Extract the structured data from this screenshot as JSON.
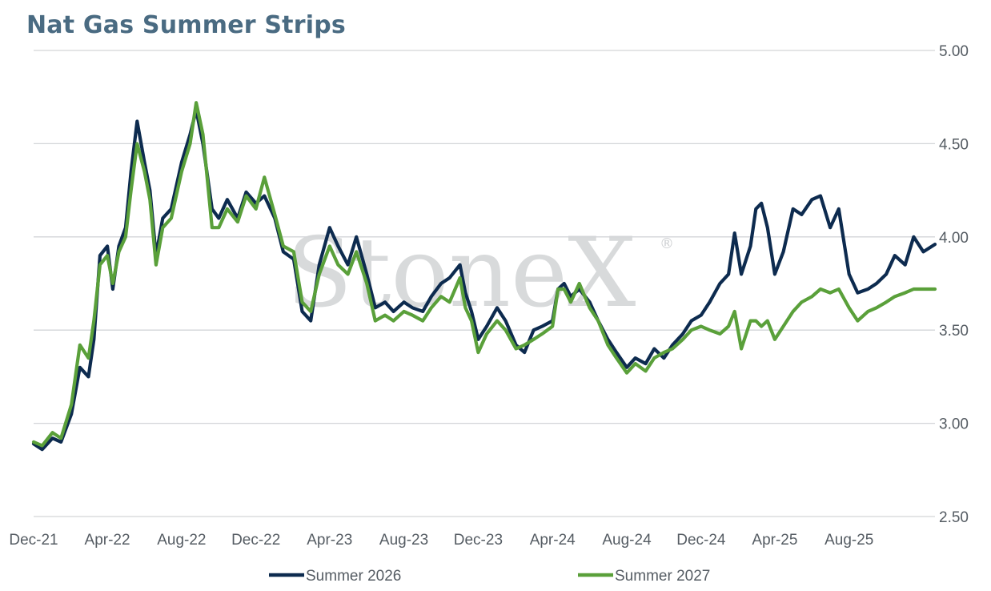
{
  "chart_data": {
    "type": "line",
    "title": "Nat Gas Summer Strips",
    "xlabel": "",
    "ylabel": "",
    "x_range": [
      "2021-12-01",
      "2025-12-20"
    ],
    "ylim": [
      2.5,
      5.0
    ],
    "y_ticks": [
      "5.00",
      "4.50",
      "4.00",
      "3.50",
      "3.00",
      "2.50"
    ],
    "y_axis_side": "right",
    "grid": "horizontal",
    "legend_position": "bottom",
    "x_ticks": [
      {
        "label": "Dec-21",
        "date": "2021-12-01"
      },
      {
        "label": "Apr-22",
        "date": "2022-04-01"
      },
      {
        "label": "Aug-22",
        "date": "2022-08-01"
      },
      {
        "label": "Dec-22",
        "date": "2022-12-01"
      },
      {
        "label": "Apr-23",
        "date": "2023-04-01"
      },
      {
        "label": "Aug-23",
        "date": "2023-08-01"
      },
      {
        "label": "Dec-23",
        "date": "2023-12-01"
      },
      {
        "label": "Apr-24",
        "date": "2024-04-01"
      },
      {
        "label": "Aug-24",
        "date": "2024-08-01"
      },
      {
        "label": "Dec-24",
        "date": "2024-12-01"
      },
      {
        "label": "Apr-25",
        "date": "2025-04-01"
      },
      {
        "label": "Aug-25",
        "date": "2025-08-01"
      }
    ],
    "series": [
      {
        "name": "Summer 2026",
        "color": "#0d2b4f",
        "points": [
          [
            "2021-12-01",
            2.89
          ],
          [
            "2021-12-15",
            2.86
          ],
          [
            "2022-01-01",
            2.92
          ],
          [
            "2022-01-15",
            2.9
          ],
          [
            "2022-02-01",
            3.05
          ],
          [
            "2022-02-15",
            3.3
          ],
          [
            "2022-03-01",
            3.25
          ],
          [
            "2022-03-10",
            3.45
          ],
          [
            "2022-03-20",
            3.9
          ],
          [
            "2022-04-01",
            3.95
          ],
          [
            "2022-04-10",
            3.72
          ],
          [
            "2022-04-20",
            3.95
          ],
          [
            "2022-05-01",
            4.05
          ],
          [
            "2022-05-10",
            4.35
          ],
          [
            "2022-05-20",
            4.62
          ],
          [
            "2022-06-01",
            4.4
          ],
          [
            "2022-06-10",
            4.25
          ],
          [
            "2022-06-20",
            3.9
          ],
          [
            "2022-07-01",
            4.1
          ],
          [
            "2022-07-15",
            4.15
          ],
          [
            "2022-08-01",
            4.4
          ],
          [
            "2022-08-15",
            4.55
          ],
          [
            "2022-08-25",
            4.68
          ],
          [
            "2022-09-05",
            4.5
          ],
          [
            "2022-09-20",
            4.15
          ],
          [
            "2022-10-01",
            4.1
          ],
          [
            "2022-10-15",
            4.2
          ],
          [
            "2022-11-01",
            4.1
          ],
          [
            "2022-11-15",
            4.24
          ],
          [
            "2022-12-01",
            4.18
          ],
          [
            "2022-12-15",
            4.22
          ],
          [
            "2023-01-01",
            4.1
          ],
          [
            "2023-01-15",
            3.92
          ],
          [
            "2023-02-01",
            3.88
          ],
          [
            "2023-02-15",
            3.6
          ],
          [
            "2023-03-01",
            3.55
          ],
          [
            "2023-03-15",
            3.85
          ],
          [
            "2023-04-01",
            4.05
          ],
          [
            "2023-04-15",
            3.95
          ],
          [
            "2023-05-01",
            3.85
          ],
          [
            "2023-05-15",
            4.0
          ],
          [
            "2023-06-01",
            3.8
          ],
          [
            "2023-06-15",
            3.62
          ],
          [
            "2023-07-01",
            3.65
          ],
          [
            "2023-07-15",
            3.6
          ],
          [
            "2023-08-01",
            3.65
          ],
          [
            "2023-08-15",
            3.62
          ],
          [
            "2023-09-01",
            3.6
          ],
          [
            "2023-09-15",
            3.68
          ],
          [
            "2023-10-01",
            3.75
          ],
          [
            "2023-10-15",
            3.78
          ],
          [
            "2023-11-01",
            3.85
          ],
          [
            "2023-11-10",
            3.7
          ],
          [
            "2023-11-20",
            3.6
          ],
          [
            "2023-12-01",
            3.45
          ],
          [
            "2023-12-15",
            3.52
          ],
          [
            "2024-01-01",
            3.62
          ],
          [
            "2024-01-15",
            3.55
          ],
          [
            "2024-02-01",
            3.42
          ],
          [
            "2024-02-15",
            3.38
          ],
          [
            "2024-03-01",
            3.5
          ],
          [
            "2024-03-15",
            3.52
          ],
          [
            "2024-04-01",
            3.55
          ],
          [
            "2024-04-10",
            3.72
          ],
          [
            "2024-04-20",
            3.75
          ],
          [
            "2024-05-01",
            3.68
          ],
          [
            "2024-05-15",
            3.72
          ],
          [
            "2024-06-01",
            3.65
          ],
          [
            "2024-06-15",
            3.55
          ],
          [
            "2024-07-01",
            3.45
          ],
          [
            "2024-07-15",
            3.38
          ],
          [
            "2024-08-01",
            3.3
          ],
          [
            "2024-08-15",
            3.35
          ],
          [
            "2024-09-01",
            3.32
          ],
          [
            "2024-09-15",
            3.4
          ],
          [
            "2024-10-01",
            3.35
          ],
          [
            "2024-10-15",
            3.42
          ],
          [
            "2024-11-01",
            3.48
          ],
          [
            "2024-11-15",
            3.55
          ],
          [
            "2024-12-01",
            3.58
          ],
          [
            "2024-12-15",
            3.65
          ],
          [
            "2025-01-01",
            3.75
          ],
          [
            "2025-01-15",
            3.8
          ],
          [
            "2025-01-25",
            4.02
          ],
          [
            "2025-02-05",
            3.8
          ],
          [
            "2025-02-20",
            3.95
          ],
          [
            "2025-03-01",
            4.15
          ],
          [
            "2025-03-10",
            4.18
          ],
          [
            "2025-03-20",
            4.05
          ],
          [
            "2025-04-01",
            3.8
          ],
          [
            "2025-04-15",
            3.92
          ],
          [
            "2025-05-01",
            4.15
          ],
          [
            "2025-05-15",
            4.12
          ],
          [
            "2025-06-01",
            4.2
          ],
          [
            "2025-06-15",
            4.22
          ],
          [
            "2025-07-01",
            4.05
          ],
          [
            "2025-07-15",
            4.15
          ],
          [
            "2025-08-01",
            3.8
          ],
          [
            "2025-08-15",
            3.7
          ],
          [
            "2025-09-01",
            3.72
          ],
          [
            "2025-09-15",
            3.75
          ],
          [
            "2025-10-01",
            3.8
          ],
          [
            "2025-10-15",
            3.9
          ],
          [
            "2025-11-01",
            3.85
          ],
          [
            "2025-11-15",
            4.0
          ],
          [
            "2025-12-01",
            3.92
          ],
          [
            "2025-12-20",
            3.96
          ]
        ]
      },
      {
        "name": "Summer 2027",
        "color": "#5aa03a",
        "points": [
          [
            "2021-12-01",
            2.9
          ],
          [
            "2021-12-15",
            2.88
          ],
          [
            "2022-01-01",
            2.95
          ],
          [
            "2022-01-15",
            2.92
          ],
          [
            "2022-02-01",
            3.1
          ],
          [
            "2022-02-15",
            3.42
          ],
          [
            "2022-03-01",
            3.35
          ],
          [
            "2022-03-10",
            3.55
          ],
          [
            "2022-03-20",
            3.85
          ],
          [
            "2022-04-01",
            3.9
          ],
          [
            "2022-04-10",
            3.75
          ],
          [
            "2022-04-20",
            3.92
          ],
          [
            "2022-05-01",
            4.0
          ],
          [
            "2022-05-10",
            4.25
          ],
          [
            "2022-05-20",
            4.5
          ],
          [
            "2022-06-01",
            4.35
          ],
          [
            "2022-06-10",
            4.2
          ],
          [
            "2022-06-20",
            3.85
          ],
          [
            "2022-07-01",
            4.05
          ],
          [
            "2022-07-15",
            4.1
          ],
          [
            "2022-08-01",
            4.35
          ],
          [
            "2022-08-15",
            4.5
          ],
          [
            "2022-08-25",
            4.72
          ],
          [
            "2022-09-05",
            4.55
          ],
          [
            "2022-09-20",
            4.05
          ],
          [
            "2022-10-01",
            4.05
          ],
          [
            "2022-10-15",
            4.15
          ],
          [
            "2022-11-01",
            4.08
          ],
          [
            "2022-11-15",
            4.22
          ],
          [
            "2022-12-01",
            4.15
          ],
          [
            "2022-12-15",
            4.32
          ],
          [
            "2023-01-01",
            4.12
          ],
          [
            "2023-01-15",
            3.95
          ],
          [
            "2023-02-01",
            3.92
          ],
          [
            "2023-02-15",
            3.65
          ],
          [
            "2023-03-01",
            3.6
          ],
          [
            "2023-03-15",
            3.8
          ],
          [
            "2023-04-01",
            3.95
          ],
          [
            "2023-04-15",
            3.85
          ],
          [
            "2023-05-01",
            3.8
          ],
          [
            "2023-05-15",
            3.92
          ],
          [
            "2023-06-01",
            3.75
          ],
          [
            "2023-06-15",
            3.55
          ],
          [
            "2023-07-01",
            3.58
          ],
          [
            "2023-07-15",
            3.55
          ],
          [
            "2023-08-01",
            3.6
          ],
          [
            "2023-08-15",
            3.58
          ],
          [
            "2023-09-01",
            3.55
          ],
          [
            "2023-09-15",
            3.62
          ],
          [
            "2023-10-01",
            3.68
          ],
          [
            "2023-10-15",
            3.65
          ],
          [
            "2023-11-01",
            3.78
          ],
          [
            "2023-11-10",
            3.62
          ],
          [
            "2023-11-20",
            3.55
          ],
          [
            "2023-12-01",
            3.38
          ],
          [
            "2023-12-15",
            3.48
          ],
          [
            "2024-01-01",
            3.55
          ],
          [
            "2024-01-15",
            3.5
          ],
          [
            "2024-02-01",
            3.4
          ],
          [
            "2024-02-15",
            3.42
          ],
          [
            "2024-03-01",
            3.45
          ],
          [
            "2024-03-15",
            3.48
          ],
          [
            "2024-04-01",
            3.52
          ],
          [
            "2024-04-10",
            3.72
          ],
          [
            "2024-04-20",
            3.72
          ],
          [
            "2024-05-01",
            3.65
          ],
          [
            "2024-05-15",
            3.75
          ],
          [
            "2024-06-01",
            3.62
          ],
          [
            "2024-06-15",
            3.55
          ],
          [
            "2024-07-01",
            3.42
          ],
          [
            "2024-07-15",
            3.35
          ],
          [
            "2024-08-01",
            3.27
          ],
          [
            "2024-08-15",
            3.32
          ],
          [
            "2024-09-01",
            3.28
          ],
          [
            "2024-09-15",
            3.35
          ],
          [
            "2024-10-01",
            3.38
          ],
          [
            "2024-10-15",
            3.4
          ],
          [
            "2024-11-01",
            3.45
          ],
          [
            "2024-11-15",
            3.5
          ],
          [
            "2024-12-01",
            3.52
          ],
          [
            "2024-12-15",
            3.5
          ],
          [
            "2025-01-01",
            3.48
          ],
          [
            "2025-01-15",
            3.52
          ],
          [
            "2025-01-25",
            3.6
          ],
          [
            "2025-02-05",
            3.4
          ],
          [
            "2025-02-20",
            3.55
          ],
          [
            "2025-03-01",
            3.55
          ],
          [
            "2025-03-10",
            3.52
          ],
          [
            "2025-03-20",
            3.55
          ],
          [
            "2025-04-01",
            3.45
          ],
          [
            "2025-04-15",
            3.52
          ],
          [
            "2025-05-01",
            3.6
          ],
          [
            "2025-05-15",
            3.65
          ],
          [
            "2025-06-01",
            3.68
          ],
          [
            "2025-06-15",
            3.72
          ],
          [
            "2025-07-01",
            3.7
          ],
          [
            "2025-07-15",
            3.72
          ],
          [
            "2025-08-01",
            3.62
          ],
          [
            "2025-08-15",
            3.55
          ],
          [
            "2025-09-01",
            3.6
          ],
          [
            "2025-09-15",
            3.62
          ],
          [
            "2025-10-01",
            3.65
          ],
          [
            "2025-10-15",
            3.68
          ],
          [
            "2025-11-01",
            3.7
          ],
          [
            "2025-11-15",
            3.72
          ],
          [
            "2025-12-01",
            3.72
          ],
          [
            "2025-12-20",
            3.72
          ]
        ]
      }
    ]
  },
  "watermark": {
    "text": "StoneX",
    "mark": "®"
  }
}
